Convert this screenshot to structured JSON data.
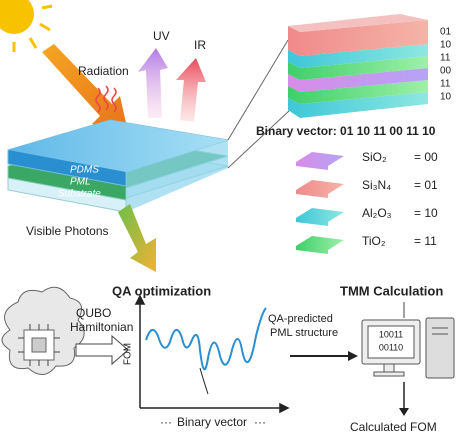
{
  "radiation": {
    "uv": "UV",
    "ir": "IR",
    "radiation": "Radiation",
    "visible_photons": "Visible Photons"
  },
  "device_layers": [
    "PDMS",
    "PML",
    "Substrate"
  ],
  "stack_codes": [
    "01",
    "10",
    "11",
    "00",
    "11",
    "10"
  ],
  "binary_vector": "Binary vector: 01 10 11 00 11 10",
  "legend": [
    {
      "material": "SiO₂",
      "code": "= 00"
    },
    {
      "material": "Si₃N₄",
      "code": "= 01"
    },
    {
      "material": "Al₂O₃",
      "code": "= 10"
    },
    {
      "material": "TiO₂",
      "code": "= 11"
    }
  ],
  "qa": {
    "title": "QA optimization",
    "hamiltonian": [
      "QUBO",
      "Hamiltonian"
    ],
    "y_axis": "FOM",
    "x_axis": "Binary vector",
    "prediction": [
      "QA-predicted",
      "PML structure"
    ]
  },
  "tmm": {
    "title": "TMM Calculation",
    "screen": [
      "10011",
      "00110"
    ],
    "result": "Calculated FOM"
  }
}
